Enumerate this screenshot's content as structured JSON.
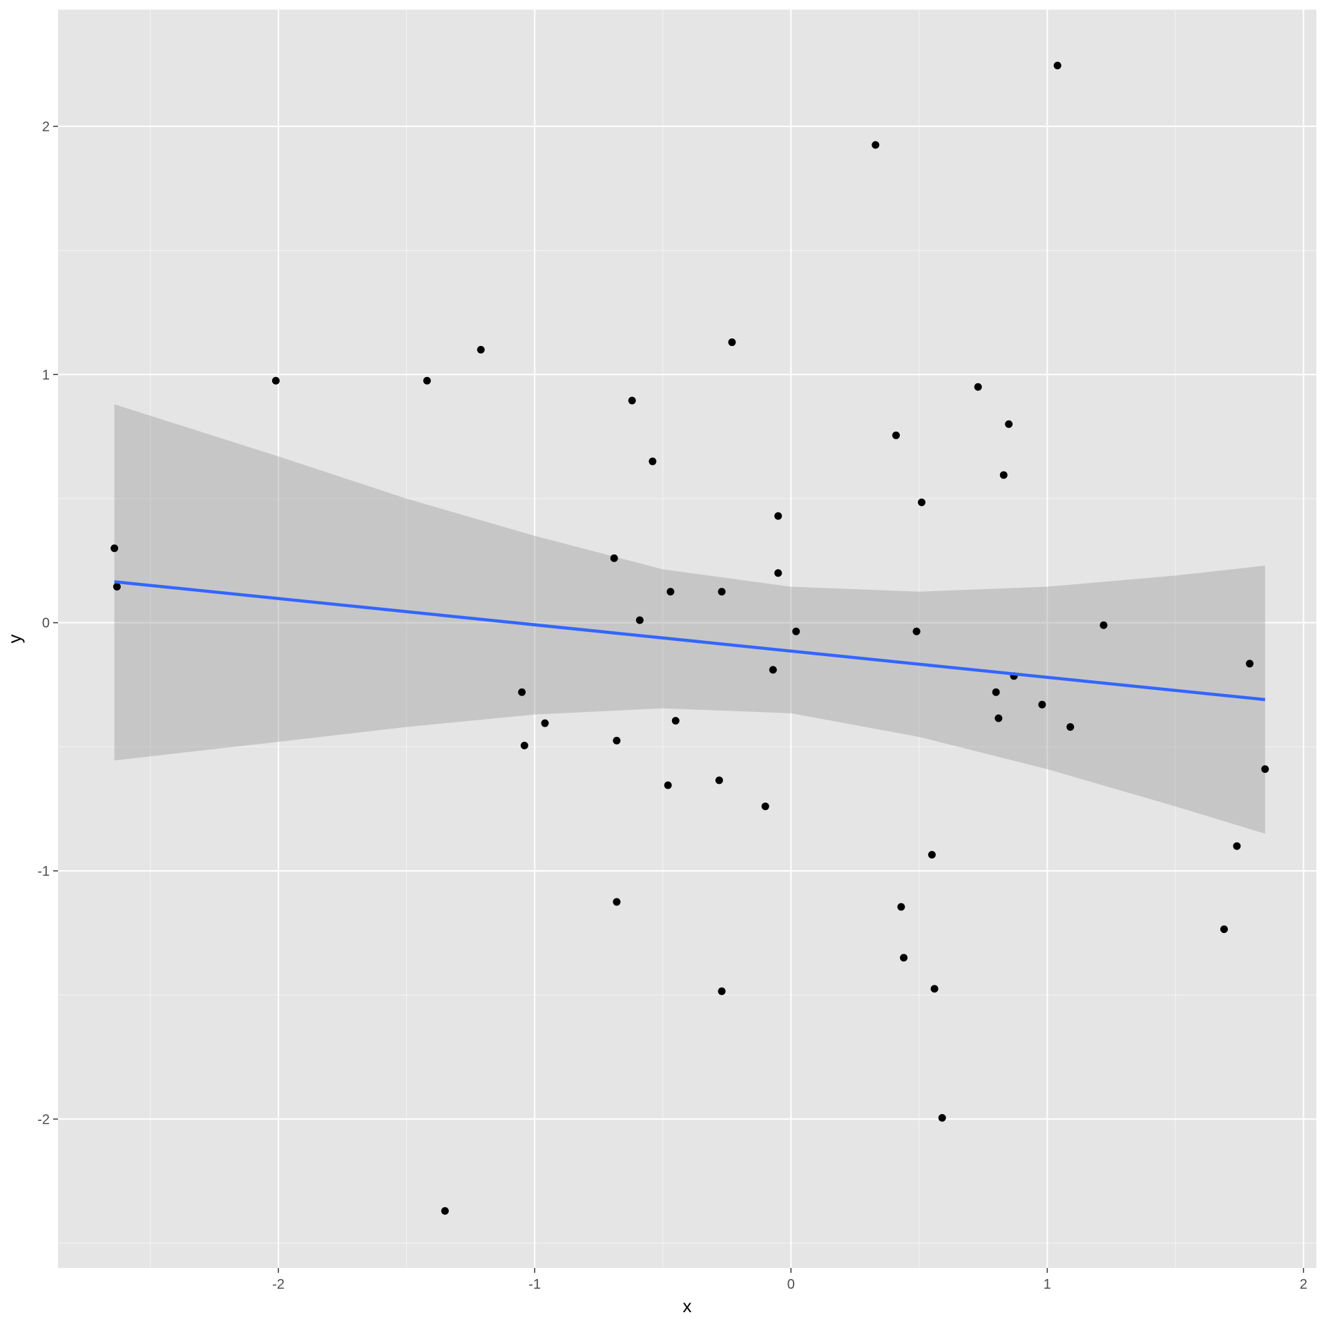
{
  "chart_data": {
    "type": "scatter",
    "title": "",
    "xlabel": "x",
    "ylabel": "y",
    "xlim": [
      -2.86,
      2.05
    ],
    "ylim": [
      -2.6,
      2.47
    ],
    "x_ticks": [
      -2,
      -1,
      0,
      1,
      2
    ],
    "x_tick_labels": [
      "-2",
      "-1",
      "0",
      "1",
      "2"
    ],
    "y_ticks": [
      -2,
      -1,
      0,
      1,
      2
    ],
    "y_tick_labels": [
      "-2",
      "-1",
      "0",
      "1",
      "2"
    ],
    "grid": true,
    "background": "#e5e5e5",
    "point_color": "#000000",
    "points": [
      {
        "x": -2.64,
        "y": 0.3
      },
      {
        "x": -2.63,
        "y": 0.145
      },
      {
        "x": -2.01,
        "y": 0.975
      },
      {
        "x": -1.42,
        "y": 0.975
      },
      {
        "x": -1.21,
        "y": 1.1
      },
      {
        "x": -1.35,
        "y": -2.37
      },
      {
        "x": -1.05,
        "y": -0.28
      },
      {
        "x": -1.04,
        "y": -0.495
      },
      {
        "x": -0.96,
        "y": -0.405
      },
      {
        "x": -0.69,
        "y": 0.26
      },
      {
        "x": -0.68,
        "y": -0.475
      },
      {
        "x": -0.68,
        "y": -1.125
      },
      {
        "x": -0.62,
        "y": 0.895
      },
      {
        "x": -0.59,
        "y": 0.01
      },
      {
        "x": -0.54,
        "y": 0.65
      },
      {
        "x": -0.48,
        "y": -0.655
      },
      {
        "x": -0.47,
        "y": 0.125
      },
      {
        "x": -0.45,
        "y": -0.395
      },
      {
        "x": -0.28,
        "y": -0.635
      },
      {
        "x": -0.27,
        "y": 0.125
      },
      {
        "x": -0.27,
        "y": -1.485
      },
      {
        "x": -0.23,
        "y": 1.13
      },
      {
        "x": -0.1,
        "y": -0.74
      },
      {
        "x": -0.07,
        "y": -0.19
      },
      {
        "x": -0.05,
        "y": 0.2
      },
      {
        "x": -0.05,
        "y": 0.43
      },
      {
        "x": 0.02,
        "y": -0.035
      },
      {
        "x": 0.33,
        "y": 1.925
      },
      {
        "x": 0.41,
        "y": 0.755
      },
      {
        "x": 0.43,
        "y": -1.145
      },
      {
        "x": 0.44,
        "y": -1.35
      },
      {
        "x": 0.49,
        "y": -0.035
      },
      {
        "x": 0.51,
        "y": 0.485
      },
      {
        "x": 0.55,
        "y": -0.935
      },
      {
        "x": 0.56,
        "y": -1.475
      },
      {
        "x": 0.59,
        "y": -1.995
      },
      {
        "x": 0.73,
        "y": 0.95
      },
      {
        "x": 0.8,
        "y": -0.28
      },
      {
        "x": 0.81,
        "y": -0.385
      },
      {
        "x": 0.83,
        "y": 0.595
      },
      {
        "x": 0.85,
        "y": 0.8
      },
      {
        "x": 0.87,
        "y": -0.215
      },
      {
        "x": 0.98,
        "y": -0.33
      },
      {
        "x": 1.04,
        "y": 2.245
      },
      {
        "x": 1.09,
        "y": -0.42
      },
      {
        "x": 1.22,
        "y": -0.01
      },
      {
        "x": 1.69,
        "y": -1.235
      },
      {
        "x": 1.74,
        "y": -0.9
      },
      {
        "x": 1.79,
        "y": -0.165
      },
      {
        "x": 1.85,
        "y": -0.59
      }
    ],
    "series": [
      {
        "type": "line",
        "color": "#3366ff",
        "x": [
          -2.64,
          1.85
        ],
        "y": [
          0.165,
          -0.31
        ]
      }
    ],
    "confidence_band": {
      "color": "#999999",
      "x": [
        -2.64,
        -2.0,
        -1.5,
        -1.0,
        -0.5,
        0.0,
        0.5,
        1.0,
        1.5,
        1.85
      ],
      "upper": [
        0.88,
        0.67,
        0.5,
        0.35,
        0.215,
        0.145,
        0.125,
        0.145,
        0.19,
        0.23
      ],
      "lower": [
        -0.555,
        -0.48,
        -0.42,
        -0.37,
        -0.345,
        -0.365,
        -0.46,
        -0.59,
        -0.74,
        -0.85
      ]
    }
  }
}
